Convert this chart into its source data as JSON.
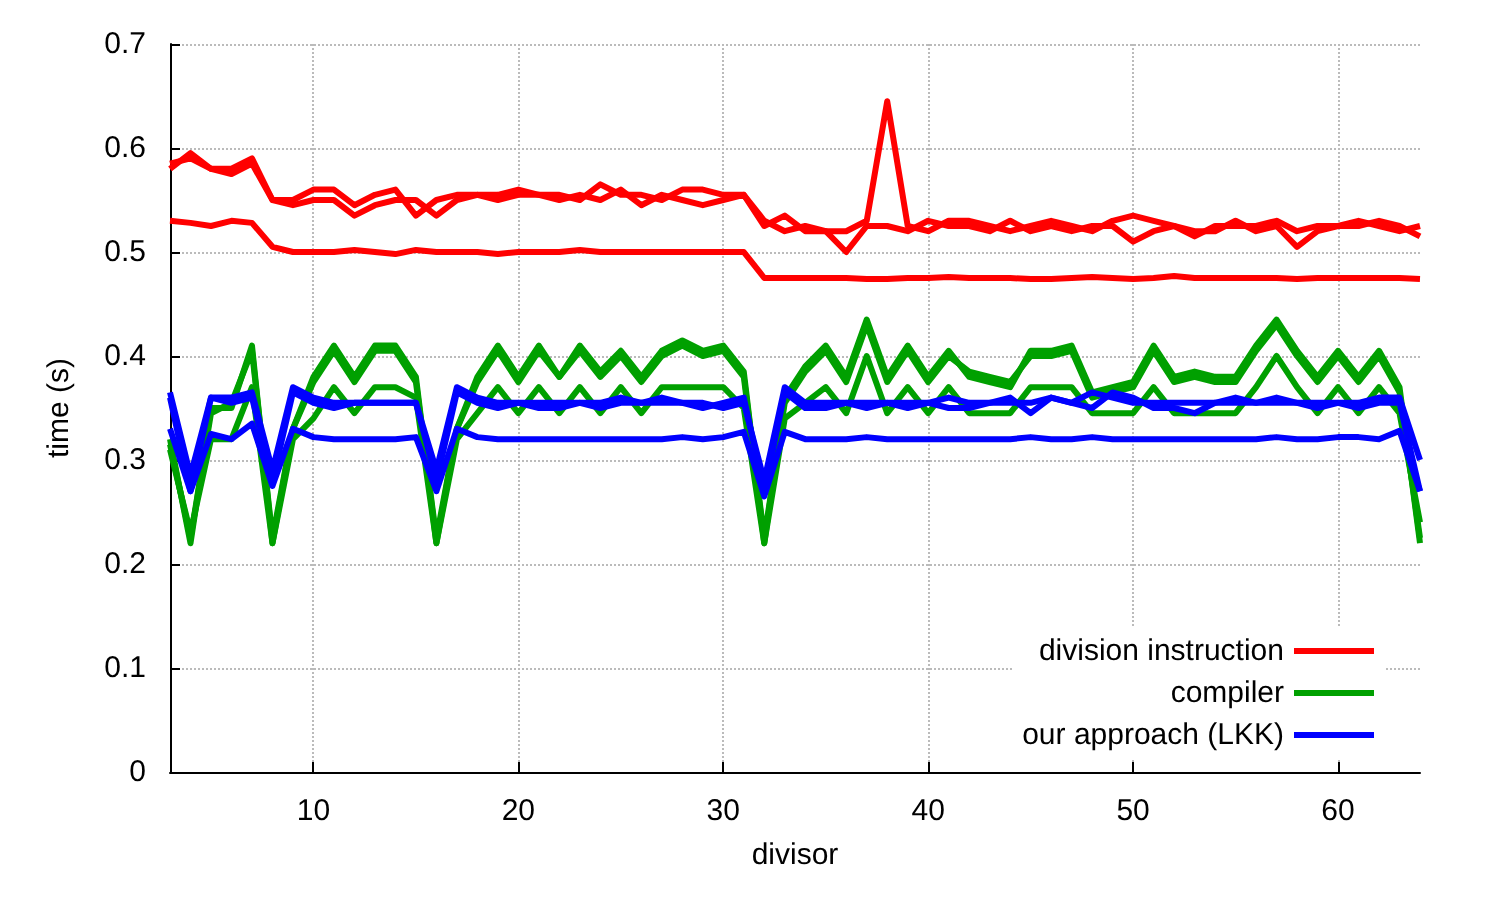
{
  "chart_data": {
    "type": "line",
    "xlabel": "divisor",
    "ylabel": "time (s)",
    "x": [
      3,
      4,
      5,
      6,
      7,
      8,
      9,
      10,
      11,
      12,
      13,
      14,
      15,
      16,
      17,
      18,
      19,
      20,
      21,
      22,
      23,
      24,
      25,
      26,
      27,
      28,
      29,
      30,
      31,
      32,
      33,
      34,
      35,
      36,
      37,
      38,
      39,
      40,
      41,
      42,
      43,
      44,
      45,
      46,
      47,
      48,
      49,
      50,
      51,
      52,
      53,
      54,
      55,
      56,
      57,
      58,
      59,
      60,
      61,
      62,
      63,
      64
    ],
    "series": [
      {
        "name": "division instruction",
        "color": "#ff0000",
        "values": [
          0.58,
          0.595,
          0.58,
          0.58,
          0.59,
          0.55,
          0.55,
          0.56,
          0.56,
          0.545,
          0.555,
          0.56,
          0.535,
          0.55,
          0.555,
          0.555,
          0.555,
          0.56,
          0.555,
          0.555,
          0.55,
          0.565,
          0.555,
          0.555,
          0.55,
          0.56,
          0.56,
          0.555,
          0.555,
          0.525,
          0.535,
          0.52,
          0.52,
          0.52,
          0.53,
          0.645,
          0.525,
          0.52,
          0.53,
          0.53,
          0.525,
          0.52,
          0.525,
          0.53,
          0.525,
          0.52,
          0.53,
          0.535,
          0.53,
          0.525,
          0.515,
          0.525,
          0.525,
          0.525,
          0.53,
          0.52,
          0.525,
          0.525,
          0.525,
          0.53,
          0.525,
          0.515
        ]
      },
      {
        "color": "#ff0000",
        "values": [
          0.585,
          0.59,
          0.58,
          0.575,
          0.585,
          0.55,
          0.545,
          0.55,
          0.55,
          0.535,
          0.545,
          0.55,
          0.55,
          0.535,
          0.55,
          0.555,
          0.55,
          0.555,
          0.555,
          0.55,
          0.555,
          0.55,
          0.56,
          0.545,
          0.555,
          0.55,
          0.545,
          0.55,
          0.555,
          0.53,
          0.52,
          0.525,
          0.52,
          0.5,
          0.525,
          0.525,
          0.52,
          0.53,
          0.525,
          0.525,
          0.52,
          0.53,
          0.52,
          0.525,
          0.52,
          0.525,
          0.525,
          0.51,
          0.52,
          0.525,
          0.52,
          0.52,
          0.53,
          0.52,
          0.525,
          0.505,
          0.52,
          0.525,
          0.53,
          0.525,
          0.52,
          0.525
        ]
      },
      {
        "color": "#ff0000",
        "values": [
          0.53,
          0.528,
          0.525,
          0.53,
          0.528,
          0.505,
          0.5,
          0.5,
          0.5,
          0.502,
          0.5,
          0.498,
          0.502,
          0.5,
          0.5,
          0.5,
          0.498,
          0.5,
          0.5,
          0.5,
          0.502,
          0.5,
          0.5,
          0.5,
          0.5,
          0.5,
          0.5,
          0.5,
          0.5,
          0.475,
          0.475,
          0.475,
          0.475,
          0.475,
          0.474,
          0.474,
          0.475,
          0.475,
          0.476,
          0.475,
          0.475,
          0.475,
          0.474,
          0.474,
          0.475,
          0.476,
          0.475,
          0.474,
          0.475,
          0.477,
          0.475,
          0.475,
          0.475,
          0.475,
          0.475,
          0.474,
          0.475,
          0.475,
          0.475,
          0.475,
          0.475,
          0.474
        ]
      },
      {
        "name": "compiler",
        "color": "#00a000",
        "values": [
          0.32,
          0.22,
          0.35,
          0.35,
          0.41,
          0.22,
          0.33,
          0.38,
          0.41,
          0.38,
          0.41,
          0.41,
          0.38,
          0.22,
          0.33,
          0.38,
          0.41,
          0.38,
          0.41,
          0.38,
          0.41,
          0.385,
          0.405,
          0.38,
          0.405,
          0.415,
          0.405,
          0.41,
          0.385,
          0.22,
          0.36,
          0.39,
          0.41,
          0.38,
          0.435,
          0.38,
          0.41,
          0.38,
          0.405,
          0.38,
          0.375,
          0.37,
          0.405,
          0.405,
          0.41,
          0.365,
          0.37,
          0.375,
          0.41,
          0.38,
          0.385,
          0.38,
          0.38,
          0.41,
          0.435,
          0.405,
          0.38,
          0.405,
          0.38,
          0.405,
          0.37,
          0.22
        ]
      },
      {
        "color": "#00a000",
        "values": [
          0.315,
          0.225,
          0.345,
          0.355,
          0.405,
          0.225,
          0.33,
          0.375,
          0.405,
          0.375,
          0.405,
          0.405,
          0.375,
          0.225,
          0.33,
          0.375,
          0.405,
          0.375,
          0.405,
          0.38,
          0.405,
          0.38,
          0.4,
          0.375,
          0.4,
          0.41,
          0.4,
          0.405,
          0.38,
          0.225,
          0.355,
          0.385,
          0.405,
          0.375,
          0.43,
          0.375,
          0.405,
          0.375,
          0.4,
          0.385,
          0.38,
          0.375,
          0.4,
          0.4,
          0.405,
          0.36,
          0.365,
          0.37,
          0.405,
          0.375,
          0.38,
          0.375,
          0.375,
          0.405,
          0.43,
          0.4,
          0.375,
          0.4,
          0.375,
          0.4,
          0.365,
          0.225
        ]
      },
      {
        "color": "#00a000",
        "values": [
          0.31,
          0.23,
          0.32,
          0.32,
          0.37,
          0.22,
          0.32,
          0.34,
          0.37,
          0.345,
          0.37,
          0.37,
          0.36,
          0.22,
          0.32,
          0.345,
          0.37,
          0.345,
          0.37,
          0.345,
          0.37,
          0.345,
          0.37,
          0.345,
          0.37,
          0.37,
          0.37,
          0.37,
          0.35,
          0.22,
          0.34,
          0.355,
          0.37,
          0.345,
          0.4,
          0.345,
          0.37,
          0.345,
          0.37,
          0.345,
          0.345,
          0.345,
          0.37,
          0.37,
          0.37,
          0.345,
          0.345,
          0.345,
          0.37,
          0.345,
          0.345,
          0.345,
          0.345,
          0.37,
          0.4,
          0.37,
          0.345,
          0.37,
          0.345,
          0.37,
          0.345,
          0.24
        ]
      },
      {
        "name": "our approach (LKK)",
        "color": "#0000ff",
        "values": [
          0.365,
          0.285,
          0.36,
          0.36,
          0.365,
          0.29,
          0.37,
          0.36,
          0.355,
          0.355,
          0.355,
          0.355,
          0.355,
          0.29,
          0.37,
          0.36,
          0.355,
          0.355,
          0.355,
          0.355,
          0.355,
          0.355,
          0.36,
          0.355,
          0.355,
          0.355,
          0.355,
          0.35,
          0.355,
          0.28,
          0.37,
          0.355,
          0.355,
          0.355,
          0.355,
          0.355,
          0.355,
          0.355,
          0.36,
          0.355,
          0.355,
          0.355,
          0.355,
          0.36,
          0.355,
          0.365,
          0.36,
          0.355,
          0.355,
          0.355,
          0.355,
          0.355,
          0.36,
          0.355,
          0.355,
          0.355,
          0.355,
          0.355,
          0.355,
          0.36,
          0.36,
          0.3
        ]
      },
      {
        "color": "#0000ff",
        "values": [
          0.36,
          0.27,
          0.36,
          0.355,
          0.36,
          0.28,
          0.365,
          0.355,
          0.35,
          0.355,
          0.355,
          0.355,
          0.355,
          0.28,
          0.365,
          0.355,
          0.35,
          0.355,
          0.35,
          0.35,
          0.355,
          0.35,
          0.355,
          0.355,
          0.36,
          0.355,
          0.35,
          0.355,
          0.36,
          0.27,
          0.365,
          0.35,
          0.35,
          0.355,
          0.35,
          0.355,
          0.35,
          0.355,
          0.35,
          0.35,
          0.355,
          0.36,
          0.345,
          0.36,
          0.355,
          0.35,
          0.365,
          0.36,
          0.35,
          0.35,
          0.345,
          0.355,
          0.355,
          0.355,
          0.36,
          0.355,
          0.35,
          0.355,
          0.35,
          0.355,
          0.355,
          0.27
        ]
      },
      {
        "color": "#0000ff",
        "values": [
          0.33,
          0.27,
          0.325,
          0.32,
          0.335,
          0.275,
          0.33,
          0.322,
          0.32,
          0.32,
          0.32,
          0.32,
          0.322,
          0.27,
          0.33,
          0.322,
          0.32,
          0.32,
          0.32,
          0.32,
          0.32,
          0.32,
          0.32,
          0.32,
          0.32,
          0.322,
          0.32,
          0.322,
          0.327,
          0.265,
          0.327,
          0.32,
          0.32,
          0.32,
          0.322,
          0.32,
          0.32,
          0.32,
          0.32,
          0.32,
          0.32,
          0.32,
          0.322,
          0.32,
          0.32,
          0.322,
          0.32,
          0.32,
          0.32,
          0.32,
          0.32,
          0.32,
          0.32,
          0.32,
          0.322,
          0.32,
          0.32,
          0.322,
          0.322,
          0.32,
          0.328,
          0.27
        ]
      }
    ],
    "xlim": [
      3,
      64
    ],
    "xticks": [
      10,
      20,
      30,
      40,
      50,
      60
    ],
    "ylim": [
      0,
      0.7
    ],
    "yticks": [
      0,
      0.1,
      0.2,
      0.3,
      0.4,
      0.5,
      0.6,
      0.7
    ],
    "grid": true,
    "legend": "bottom right",
    "marker": "none",
    "line_style": "solid"
  }
}
